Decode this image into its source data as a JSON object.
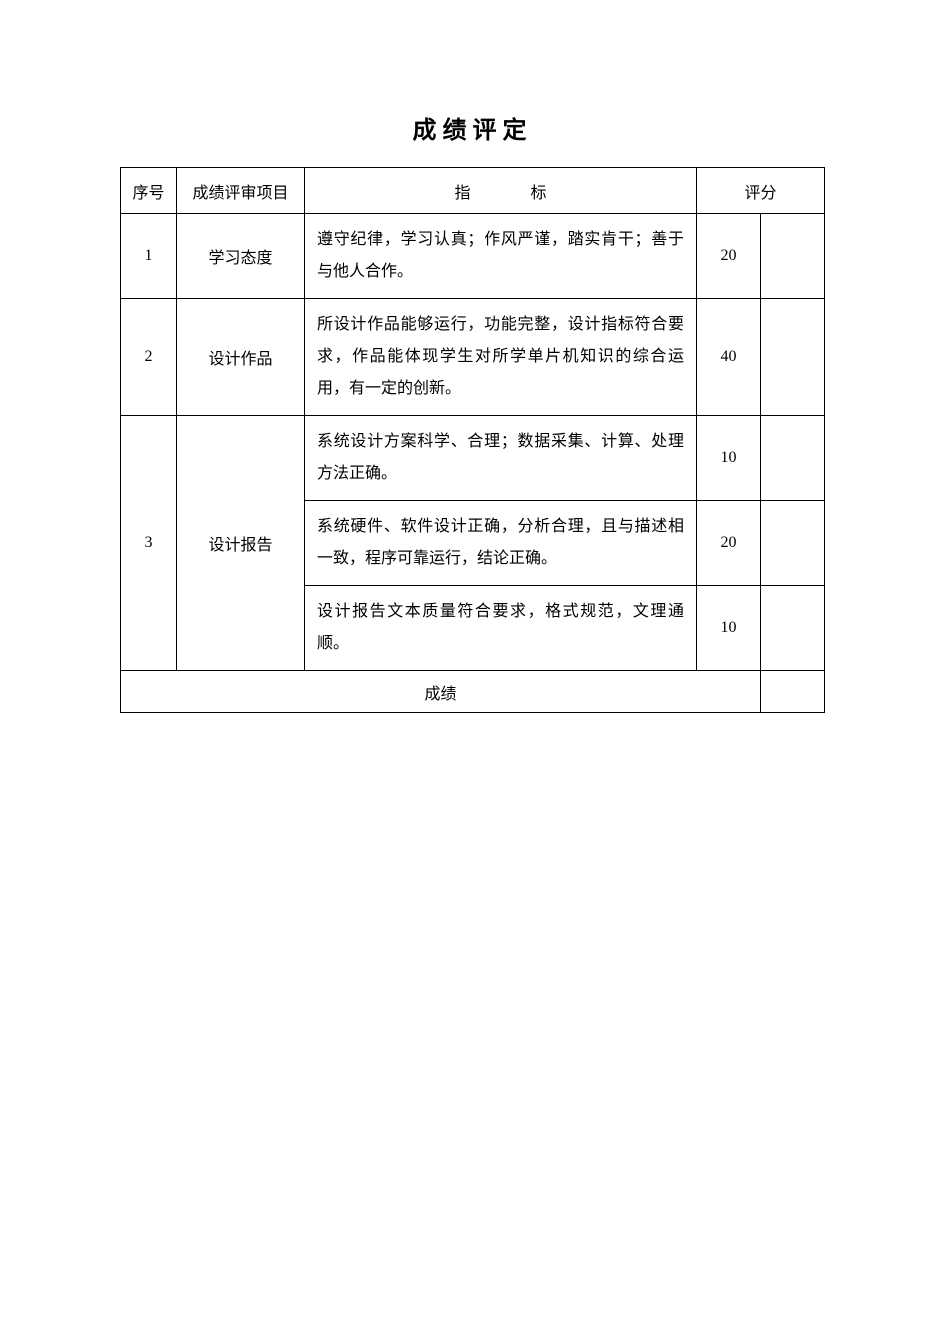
{
  "title": "成绩评定",
  "table": {
    "headers": {
      "seq": "序号",
      "item": "成绩评审项目",
      "criteria": "指标",
      "score": "评分"
    },
    "rows": [
      {
        "seq": "1",
        "item": "学习态度",
        "criteria": "遵守纪律，学习认真；作风严谨，踏实肯干；善于与他人合作。",
        "score": "20"
      },
      {
        "seq": "2",
        "item": "设计作品",
        "criteria": "所设计作品能够运行，功能完整，设计指标符合要求，作品能体现学生对所学单片机知识的综合运用，有一定的创新。",
        "score": "40"
      },
      {
        "seq": "3",
        "item": "设计报告",
        "sub": [
          {
            "criteria": "系统设计方案科学、合理；数据采集、计算、处理方法正确。",
            "score": "10"
          },
          {
            "criteria": "系统硬件、软件设计正确，分析合理，且与描述相一致，程序可靠运行，结论正确。",
            "score": "20"
          },
          {
            "criteria": "设计报告文本质量符合要求，格式规范，文理通顺。",
            "score": "10"
          }
        ]
      }
    ],
    "footer": "成绩"
  },
  "style": {
    "background_color": "#ffffff",
    "border_color": "#000000",
    "text_color": "#000000",
    "title_fontsize": 24,
    "cell_fontsize": 16,
    "font_family": "SimSun",
    "column_widths": {
      "seq": 56,
      "item": 128,
      "score": 64,
      "blank": 64
    }
  }
}
